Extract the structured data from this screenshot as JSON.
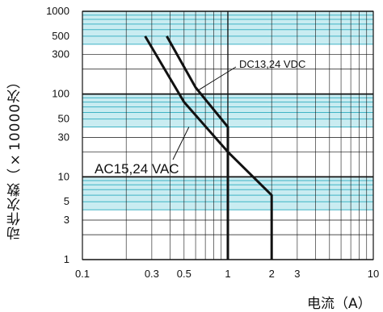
{
  "chart_data": {
    "type": "line",
    "title": "",
    "xlabel": "电流（A）",
    "ylabel": "动作次数（×10000次）",
    "x_scale": "log",
    "y_scale": "log",
    "xlim": [
      0.1,
      10
    ],
    "ylim": [
      1,
      1000
    ],
    "x_ticks": [
      0.1,
      0.3,
      0.5,
      1,
      2,
      3,
      10
    ],
    "x_tick_labels": [
      "0.1",
      "0.3",
      "0.5",
      "1",
      "2",
      "3",
      "10"
    ],
    "y_ticks": [
      1,
      3,
      5,
      10,
      30,
      50,
      100,
      300,
      500,
      1000
    ],
    "y_tick_labels": [
      "1",
      "3",
      "5",
      "10",
      "30",
      "50",
      "100",
      "300",
      "500",
      "1000"
    ],
    "grid": true,
    "series": [
      {
        "name": "DC13,24 VDC",
        "x": [
          0.38,
          0.6,
          1.0,
          1.0
        ],
        "y": [
          500,
          120,
          40,
          1
        ],
        "label_x": 0.62,
        "label_y": 110
      },
      {
        "name": "AC15,24 VAC",
        "x": [
          0.27,
          0.5,
          1.0,
          2.0,
          2.0
        ],
        "y": [
          500,
          80,
          20,
          6,
          1
        ],
        "label_x": 0.5,
        "label_y": 40
      }
    ],
    "colors": {
      "line": "#111111",
      "band": "#c9ecf1",
      "band_line": "#3fb3c5",
      "grid": "#111111"
    }
  }
}
